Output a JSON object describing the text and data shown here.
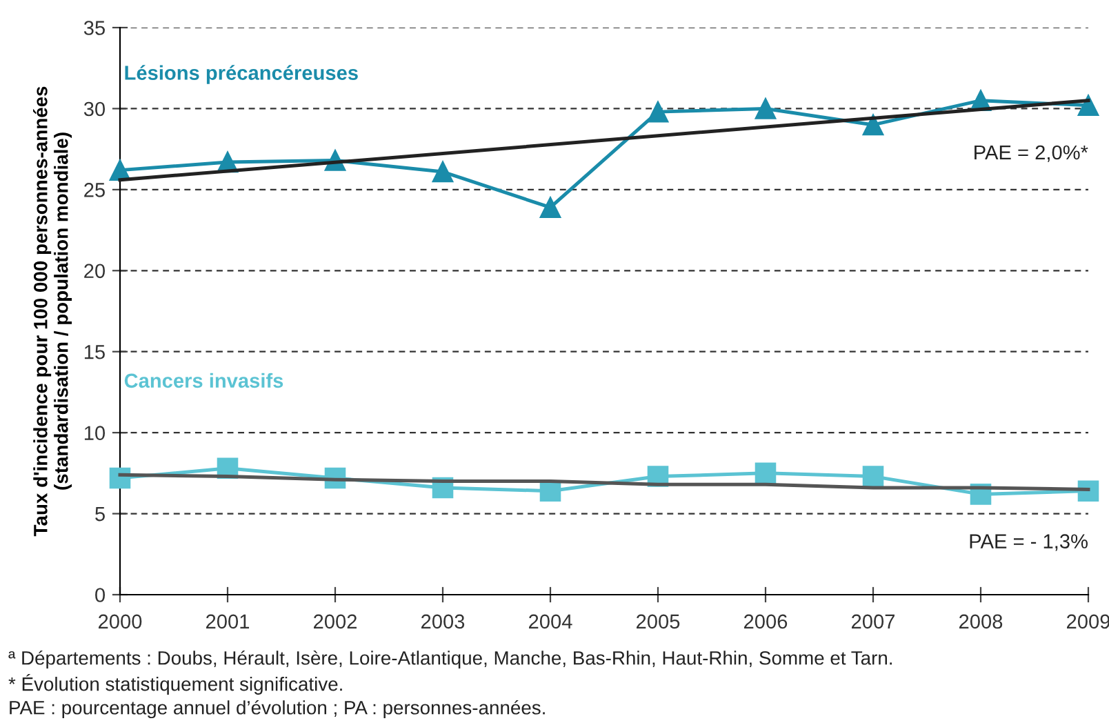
{
  "chart_data": {
    "type": "line",
    "ylabel": "Taux d'incidence pour 100 000 personnes-années\n(standardisation / population mondiale)",
    "x": [
      2000,
      2001,
      2002,
      2003,
      2004,
      2005,
      2006,
      2007,
      2008,
      2009
    ],
    "series": [
      {
        "name": "Lésions précancéreuses",
        "color": "#1a8caa",
        "marker": "triangle",
        "values": [
          26.2,
          26.7,
          26.8,
          26.1,
          23.9,
          29.8,
          30.0,
          29.0,
          30.5,
          30.2
        ]
      },
      {
        "color": "#222222",
        "marker": "none",
        "x": [
          2000,
          2009
        ],
        "values": [
          25.6,
          30.5
        ]
      },
      {
        "name": "Cancers invasifs",
        "color": "#5bc3d3",
        "marker": "square",
        "values": [
          7.2,
          7.8,
          7.2,
          6.6,
          6.4,
          7.3,
          7.5,
          7.3,
          6.2,
          6.4
        ]
      },
      {
        "color": "#555555",
        "marker": "none",
        "values": [
          7.4,
          7.3,
          7.1,
          7.0,
          7.0,
          6.8,
          6.8,
          6.6,
          6.6,
          6.5
        ]
      }
    ],
    "annotations": [
      "PAE = 2,0%*",
      "PAE = - 1,3%",
      "ª Départements : Doubs, Hérault, Isère, Loire-Atlantique, Manche, Bas-Rhin, Haut-Rhin, Somme et Tarn.",
      "* Évolution statistiquement significative.",
      "PAE : pourcentage annuel d’évolution ; PA : personnes-années."
    ],
    "xlim": [
      2000,
      2009
    ],
    "xticks": [
      2000,
      2001,
      2002,
      2003,
      2004,
      2005,
      2006,
      2007,
      2008,
      2009
    ],
    "ylim": [
      0,
      35
    ],
    "yticks": [
      0,
      5,
      10,
      15,
      20,
      25,
      30,
      35
    ],
    "grid": "y",
    "line_style": "solid",
    "legend": false
  }
}
